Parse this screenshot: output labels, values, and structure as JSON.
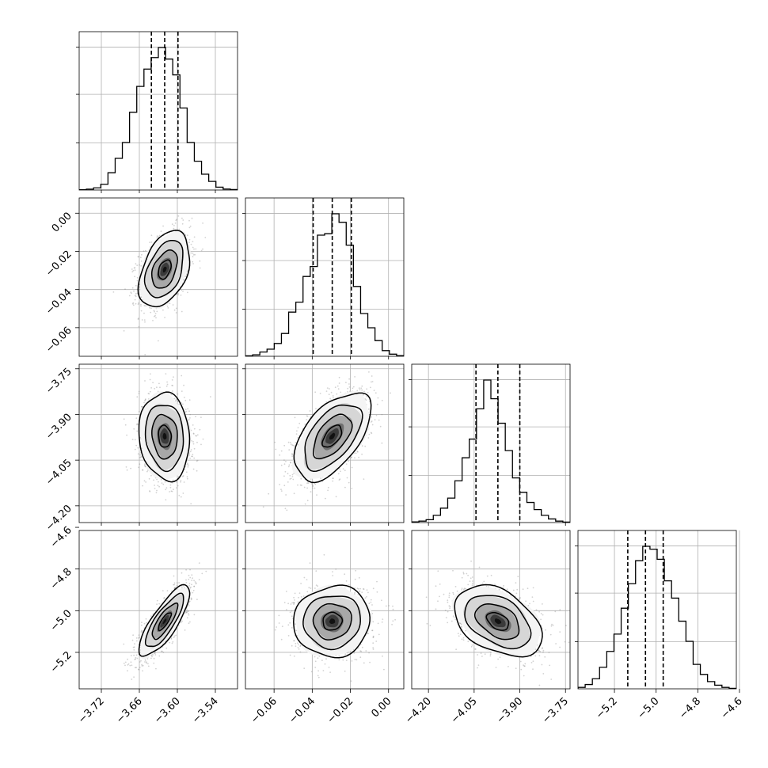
{
  "chart_data": {
    "type": "corner",
    "grid": true,
    "quantile_lines": "dashed",
    "parameters": [
      {
        "range": [
          -3.755,
          -3.505
        ],
        "ticks": [
          -3.72,
          -3.66,
          -3.6,
          -3.54
        ],
        "tick_labels": [
          "−3.72",
          "−3.66",
          "−3.60",
          "−3.54"
        ],
        "quantiles": [
          -3.641,
          -3.62,
          -3.599
        ],
        "mean": -3.62,
        "std": 0.02,
        "hist_counts": [
          0.2,
          0.6,
          1.5,
          4.0,
          12,
          22,
          33,
          54,
          72,
          84,
          92,
          99,
          91,
          80,
          57,
          33,
          20,
          11,
          6,
          2,
          0.7,
          0.3
        ]
      },
      {
        "range": [
          -0.075,
          0.008
        ],
        "ticks": [
          -0.06,
          -0.04,
          -0.02,
          0.0
        ],
        "tick_labels": [
          "−0.06",
          "−0.04",
          "−0.02",
          "0.00"
        ],
        "quantiles": [
          -0.0395,
          -0.0295,
          -0.0195
        ],
        "mean": -0.0295,
        "std": 0.01,
        "hist_counts": [
          0.3,
          1,
          3,
          5,
          9,
          16,
          31,
          38,
          56,
          63,
          85,
          86,
          100,
          94,
          78,
          49,
          30,
          20,
          11,
          4,
          1.5,
          0.5
        ]
      },
      {
        "range": [
          -4.255,
          -3.735
        ],
        "ticks": [
          -4.2,
          -4.05,
          -3.9,
          -3.75
        ],
        "tick_labels": [
          "−4.20",
          "−4.05",
          "−3.90",
          "−3.75"
        ],
        "quantiles": [
          -4.044,
          -3.972,
          -3.9
        ],
        "mean": -3.972,
        "std": 0.072,
        "hist_counts": [
          0.5,
          1,
          2,
          5,
          10,
          17,
          29,
          45,
          58,
          79,
          99,
          86,
          69,
          50,
          31,
          21,
          14,
          9,
          5,
          2.5,
          1,
          0.3
        ]
      },
      {
        "range": [
          -5.375,
          -4.615
        ],
        "ticks": [
          -5.2,
          -5.0,
          -4.8,
          -4.6
        ],
        "tick_labels": [
          "−5.2",
          "−5.0",
          "−4.8",
          "−4.6"
        ],
        "quantiles": [
          -5.136,
          -5.051,
          -4.966
        ],
        "mean": -5.051,
        "std": 0.085,
        "hist_counts": [
          1,
          3,
          7,
          15,
          26,
          38,
          56,
          73,
          89,
          99,
          97,
          90,
          75,
          63,
          47,
          33,
          17,
          10,
          5,
          2.5,
          1,
          0.3
        ]
      }
    ],
    "correlations": {
      "1_0": 0.4,
      "2_0": -0.1,
      "2_1": 0.55,
      "3_0": 0.8,
      "3_1": 0.05,
      "3_2": -0.4
    },
    "contour_levels_sigma": [
      0.5,
      1.0,
      1.5,
      2.0
    ]
  }
}
